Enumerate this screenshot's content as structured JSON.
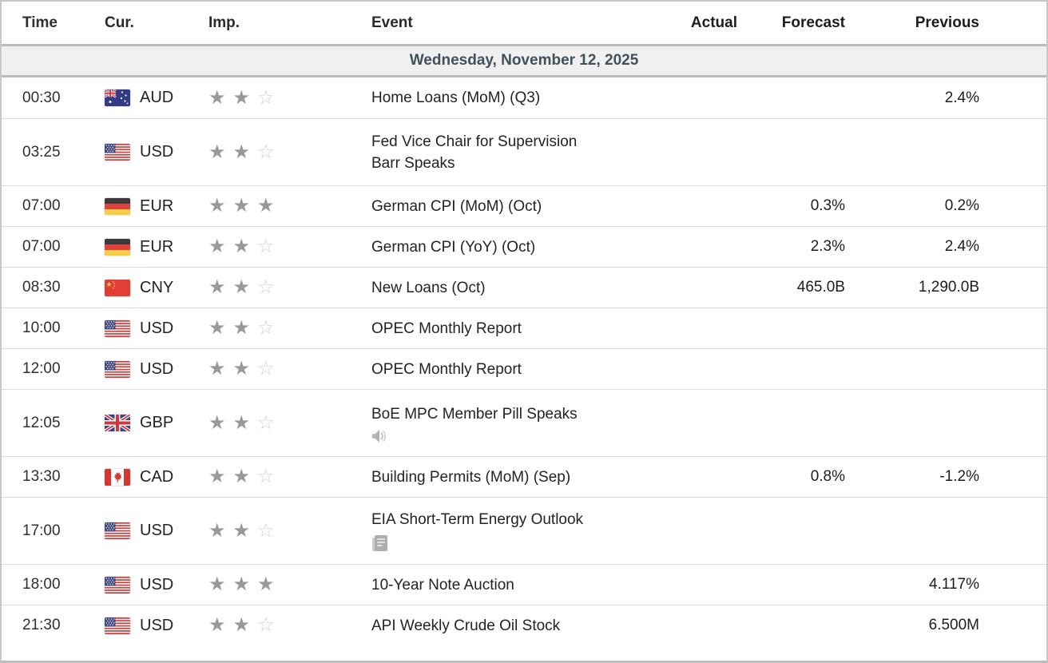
{
  "colors": {
    "text": "#232323",
    "date_row_bg": "#f0f0f0",
    "date_text": "#42505c",
    "star_filled": "#999999",
    "star_empty": "#d2d2d2",
    "border_thick": "#bdbdbd",
    "border_row": "#dcdcdc",
    "icon_gray": "#ababab"
  },
  "table": {
    "headers": {
      "time": "Time",
      "cur": "Cur.",
      "imp": "Imp.",
      "event": "Event",
      "actual": "Actual",
      "forecast": "Forecast",
      "previous": "Previous"
    },
    "date_header": "Wednesday, November 12, 2025",
    "rows": [
      {
        "time": "00:30",
        "currency": "AUD",
        "flag": "australia-flag",
        "importance": 2,
        "event_lines": [
          "Home Loans (MoM) (Q3)"
        ],
        "event_icon": "",
        "icon_newline": false,
        "actual": "",
        "forecast": "",
        "previous": "2.4%"
      },
      {
        "time": "03:25",
        "currency": "USD",
        "flag": "usa-flag",
        "importance": 2,
        "event_lines": [
          "Fed Vice Chair for Supervision",
          "Barr Speaks"
        ],
        "event_icon": "speaker",
        "icon_newline": false,
        "actual": "",
        "forecast": "",
        "previous": ""
      },
      {
        "time": "07:00",
        "currency": "EUR",
        "flag": "germany-flag",
        "importance": 3,
        "event_lines": [
          "German CPI (MoM) (Oct)"
        ],
        "event_icon": "",
        "icon_newline": false,
        "actual": "",
        "forecast": "0.3%",
        "previous": "0.2%"
      },
      {
        "time": "07:00",
        "currency": "EUR",
        "flag": "germany-flag",
        "importance": 2,
        "event_lines": [
          "German CPI (YoY) (Oct)"
        ],
        "event_icon": "",
        "icon_newline": false,
        "actual": "",
        "forecast": "2.3%",
        "previous": "2.4%"
      },
      {
        "time": "08:30",
        "currency": "CNY",
        "flag": "china-flag",
        "importance": 2,
        "event_lines": [
          "New Loans (Oct)"
        ],
        "event_icon": "",
        "icon_newline": false,
        "actual": "",
        "forecast": "465.0B",
        "previous": "1,290.0B"
      },
      {
        "time": "10:00",
        "currency": "USD",
        "flag": "usa-flag",
        "importance": 2,
        "event_lines": [
          "OPEC Monthly Report"
        ],
        "event_icon": "report",
        "icon_newline": false,
        "actual": "",
        "forecast": "",
        "previous": ""
      },
      {
        "time": "12:00",
        "currency": "USD",
        "flag": "usa-flag",
        "importance": 2,
        "event_lines": [
          "OPEC Monthly Report"
        ],
        "event_icon": "report",
        "icon_newline": false,
        "actual": "",
        "forecast": "",
        "previous": ""
      },
      {
        "time": "12:05",
        "currency": "GBP",
        "flag": "uk-flag",
        "importance": 2,
        "event_lines": [
          "BoE MPC Member Pill Speaks"
        ],
        "event_icon": "speaker",
        "icon_newline": true,
        "actual": "",
        "forecast": "",
        "previous": ""
      },
      {
        "time": "13:30",
        "currency": "CAD",
        "flag": "canada-flag",
        "importance": 2,
        "event_lines": [
          "Building Permits (MoM) (Sep)"
        ],
        "event_icon": "",
        "icon_newline": false,
        "actual": "",
        "forecast": "0.8%",
        "previous": "-1.2%"
      },
      {
        "time": "17:00",
        "currency": "USD",
        "flag": "usa-flag",
        "importance": 2,
        "event_lines": [
          "EIA Short-Term Energy Outlook"
        ],
        "event_icon": "report",
        "icon_newline": true,
        "actual": "",
        "forecast": "",
        "previous": ""
      },
      {
        "time": "18:00",
        "currency": "USD",
        "flag": "usa-flag",
        "importance": 3,
        "event_lines": [
          "10-Year Note Auction"
        ],
        "event_icon": "",
        "icon_newline": false,
        "actual": "",
        "forecast": "",
        "previous": "4.117%"
      },
      {
        "time": "21:30",
        "currency": "USD",
        "flag": "usa-flag",
        "importance": 2,
        "event_lines": [
          "API Weekly Crude Oil Stock"
        ],
        "event_icon": "",
        "icon_newline": false,
        "actual": "",
        "forecast": "",
        "previous": "6.500M"
      }
    ]
  }
}
